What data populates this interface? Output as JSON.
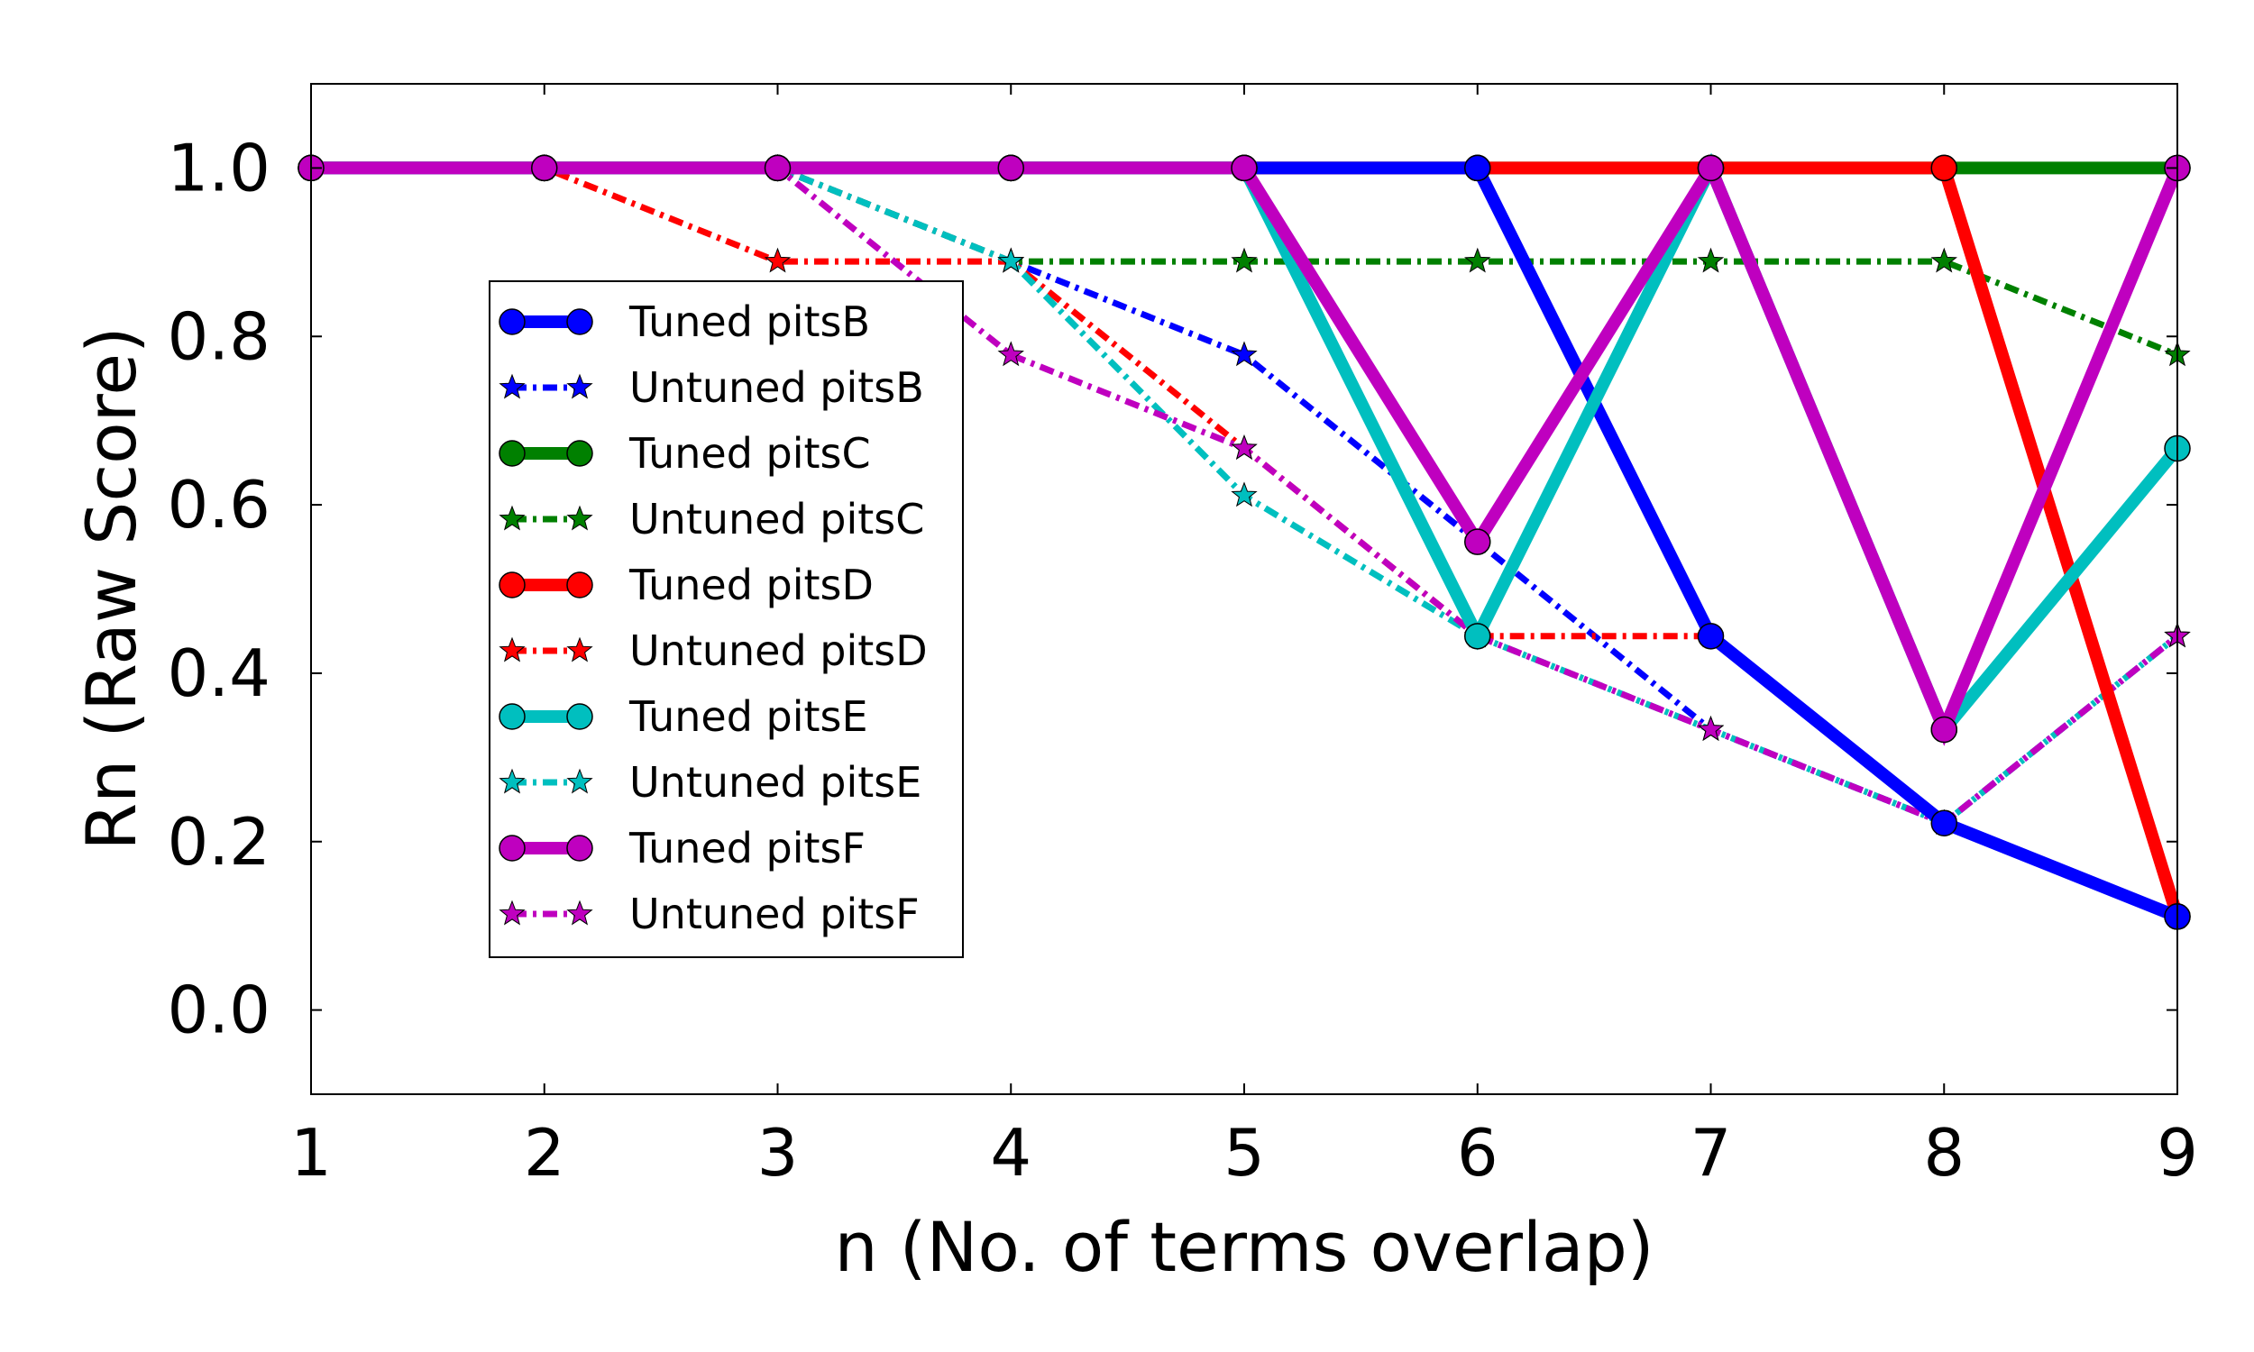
{
  "chart_data": {
    "type": "line",
    "xlabel": "n (No. of terms overlap)",
    "ylabel": "Rn (Raw Score)",
    "xlim": [
      1,
      9
    ],
    "ylim": [
      -0.1,
      1.1
    ],
    "x_ticks": [
      "1",
      "2",
      "3",
      "4",
      "5",
      "6",
      "7",
      "8",
      "9"
    ],
    "y_ticks": [
      "0.0",
      "0.2",
      "0.4",
      "0.6",
      "0.8",
      "1.0"
    ],
    "grid": false,
    "legend_position": "center-left",
    "x": [
      1,
      2,
      3,
      4,
      5,
      6,
      7,
      8,
      9
    ],
    "series": [
      {
        "name": "Untuned pitsB",
        "color": "#0000ff",
        "style": "dashdot",
        "marker": "star",
        "values": [
          1.0,
          1.0,
          1.0,
          0.889,
          0.778,
          0.556,
          0.333,
          0.222,
          0.444
        ]
      },
      {
        "name": "Untuned pitsC",
        "color": "#008000",
        "style": "dashdot",
        "marker": "star",
        "values": [
          1.0,
          1.0,
          1.0,
          0.889,
          0.889,
          0.889,
          0.889,
          0.889,
          0.778
        ]
      },
      {
        "name": "Untuned pitsD",
        "color": "#ff0000",
        "style": "dashdot",
        "marker": "star",
        "values": [
          1.0,
          1.0,
          0.889,
          0.889,
          0.667,
          0.444,
          0.444,
          0.222,
          0.111
        ]
      },
      {
        "name": "Untuned pitsE",
        "color": "#00bfbf",
        "style": "dashdot",
        "marker": "star",
        "values": [
          1.0,
          1.0,
          1.0,
          0.889,
          0.611,
          0.444,
          0.333,
          0.222,
          0.444
        ]
      },
      {
        "name": "Untuned pitsF",
        "color": "#bf00bf",
        "style": "dashdot",
        "marker": "star",
        "values": [
          1.0,
          1.0,
          1.0,
          0.778,
          0.667,
          0.444,
          0.333,
          0.222,
          0.444
        ]
      },
      {
        "name": "Tuned pitsC",
        "color": "#008000",
        "style": "solid",
        "marker": "circle",
        "values": [
          1.0,
          1.0,
          1.0,
          1.0,
          1.0,
          1.0,
          1.0,
          1.0,
          1.0
        ]
      },
      {
        "name": "Tuned pitsD",
        "color": "#ff0000",
        "style": "solid",
        "marker": "circle",
        "values": [
          1.0,
          1.0,
          1.0,
          1.0,
          1.0,
          1.0,
          1.0,
          1.0,
          0.111
        ]
      },
      {
        "name": "Tuned pitsB",
        "color": "#0000ff",
        "style": "solid",
        "marker": "circle",
        "values": [
          1.0,
          1.0,
          1.0,
          1.0,
          1.0,
          1.0,
          0.444,
          0.222,
          0.111
        ]
      },
      {
        "name": "Tuned pitsE",
        "color": "#00bfbf",
        "style": "solid",
        "marker": "circle",
        "values": [
          1.0,
          1.0,
          1.0,
          1.0,
          1.0,
          0.444,
          1.0,
          0.333,
          0.667
        ]
      },
      {
        "name": "Tuned pitsF",
        "color": "#bf00bf",
        "style": "solid",
        "marker": "circle",
        "values": [
          1.0,
          1.0,
          1.0,
          1.0,
          1.0,
          0.556,
          1.0,
          0.333,
          1.0
        ]
      }
    ],
    "legend": [
      {
        "label": "Tuned pitsB",
        "color": "#0000ff",
        "style": "solid",
        "marker": "circle"
      },
      {
        "label": "Untuned pitsB",
        "color": "#0000ff",
        "style": "dashdot",
        "marker": "star"
      },
      {
        "label": "Tuned pitsC",
        "color": "#008000",
        "style": "solid",
        "marker": "circle"
      },
      {
        "label": "Untuned pitsC",
        "color": "#008000",
        "style": "dashdot",
        "marker": "star"
      },
      {
        "label": "Tuned pitsD",
        "color": "#ff0000",
        "style": "solid",
        "marker": "circle"
      },
      {
        "label": "Untuned pitsD",
        "color": "#ff0000",
        "style": "dashdot",
        "marker": "star"
      },
      {
        "label": "Tuned pitsE",
        "color": "#00bfbf",
        "style": "solid",
        "marker": "circle"
      },
      {
        "label": "Untuned pitsE",
        "color": "#00bfbf",
        "style": "dashdot",
        "marker": "star"
      },
      {
        "label": "Tuned pitsF",
        "color": "#bf00bf",
        "style": "solid",
        "marker": "circle"
      },
      {
        "label": "Untuned pitsF",
        "color": "#bf00bf",
        "style": "dashdot",
        "marker": "star"
      }
    ]
  }
}
